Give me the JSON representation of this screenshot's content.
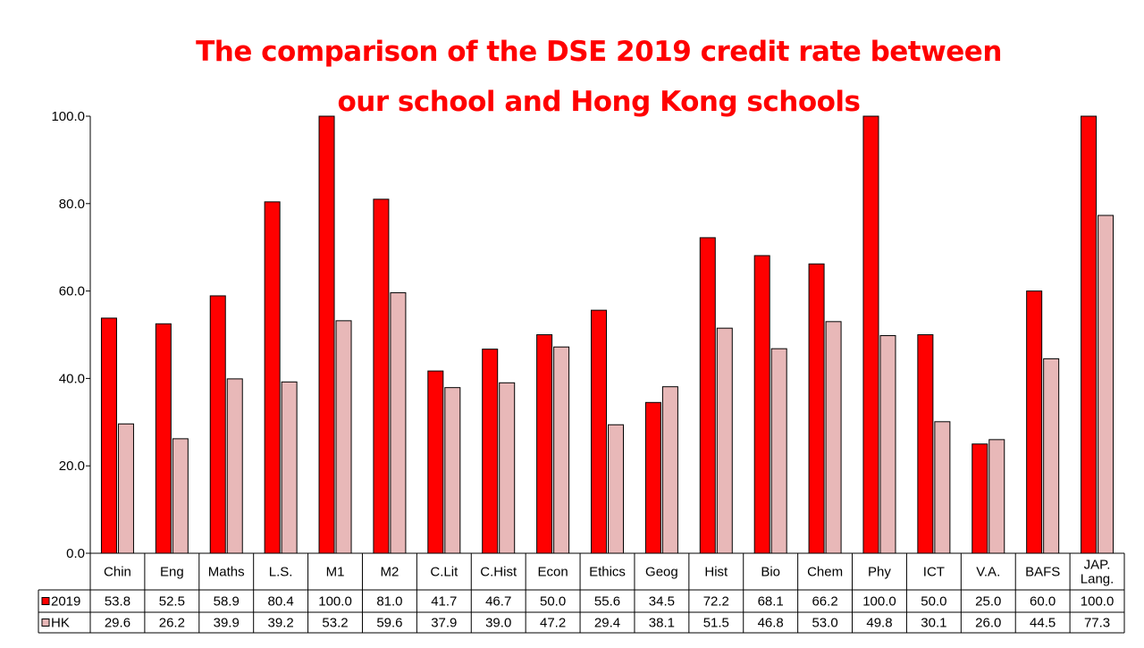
{
  "colors": {
    "series_2019": "#ff0000",
    "series_hk": "#e8b8b8",
    "title": "#ff0000"
  },
  "chart_data": {
    "type": "bar",
    "title_lines": [
      "The comparison of the DSE 2019 credit rate between",
      "our school and Hong Kong schools"
    ],
    "categories": [
      [
        "Chin"
      ],
      [
        "Eng"
      ],
      [
        "Maths"
      ],
      [
        "L.S."
      ],
      [
        "M1"
      ],
      [
        "M2"
      ],
      [
        "C.Lit"
      ],
      [
        "C.Hist"
      ],
      [
        "Econ"
      ],
      [
        "Ethics"
      ],
      [
        "Geog"
      ],
      [
        "Hist"
      ],
      [
        "Bio"
      ],
      [
        "Chem"
      ],
      [
        "Phy"
      ],
      [
        "ICT"
      ],
      [
        "V.A."
      ],
      [
        "BAFS"
      ],
      [
        "JAP.",
        "Lang."
      ]
    ],
    "series": [
      {
        "name": "2019",
        "color": "#ff0000",
        "values": [
          53.8,
          52.5,
          58.9,
          80.4,
          100.0,
          81.0,
          41.7,
          46.7,
          50.0,
          55.6,
          34.5,
          72.2,
          68.1,
          66.2,
          100.0,
          50.0,
          25.0,
          60.0,
          100.0
        ]
      },
      {
        "name": "HK",
        "color": "#e8b8b8",
        "values": [
          29.6,
          26.2,
          39.9,
          39.2,
          53.2,
          59.6,
          37.9,
          39.0,
          47.2,
          29.4,
          38.1,
          51.5,
          46.8,
          53.0,
          49.8,
          30.1,
          26.0,
          44.5,
          77.3
        ]
      }
    ],
    "ylim": [
      0,
      100
    ],
    "yticks": [
      "0.0",
      "20.0",
      "40.0",
      "60.0",
      "80.0",
      "100.0"
    ],
    "grid": false,
    "legend": "data-table"
  }
}
